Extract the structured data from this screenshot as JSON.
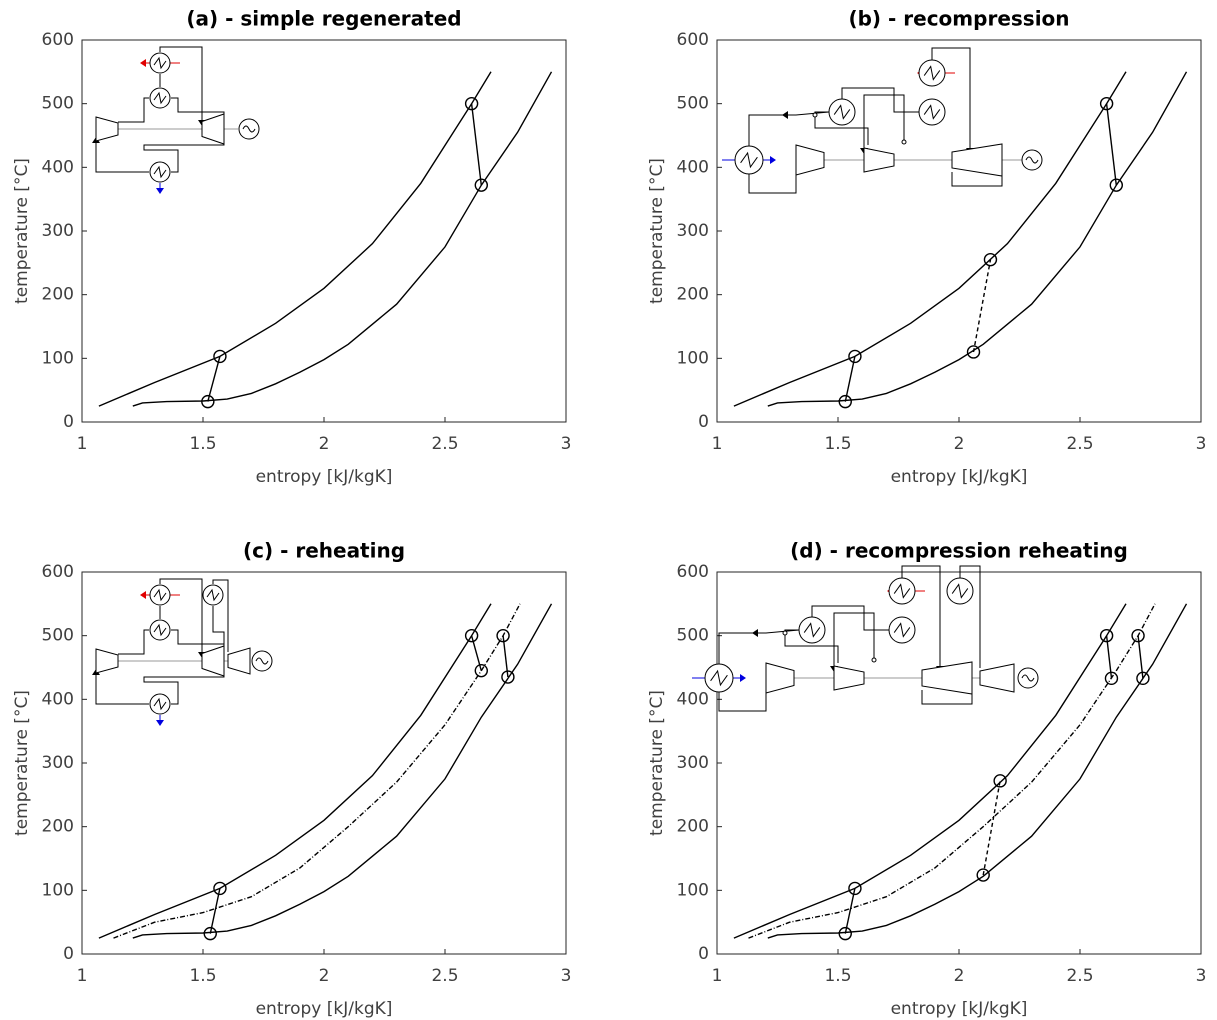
{
  "chart_data": [
    {
      "type": "line",
      "title": "(a) - simple regenerated",
      "xlabel": "entropy [kJ/kgK]",
      "ylabel": "temperature [°C]",
      "xlim": [
        1,
        3
      ],
      "ylim": [
        0,
        600
      ],
      "xticks": [
        1,
        1.5,
        2,
        2.5,
        3
      ],
      "yticks": [
        0,
        100,
        200,
        300,
        400,
        500,
        600
      ],
      "series": [
        {
          "color": "#000000",
          "style": "solid",
          "x": [
            1.07,
            1.3,
            1.57,
            1.8,
            2.0,
            2.2,
            2.4,
            2.61,
            2.69
          ],
          "values": [
            25,
            62,
            103,
            155,
            210,
            280,
            375,
            500,
            550
          ]
        },
        {
          "color": "#000000",
          "style": "solid",
          "x": [
            1.21,
            1.25,
            1.35,
            1.5,
            1.6,
            1.7,
            1.8,
            1.9,
            2.0,
            2.1,
            2.3,
            2.5,
            2.65,
            2.8,
            2.94
          ],
          "values": [
            25,
            30,
            32,
            33,
            36,
            45,
            60,
            78,
            98,
            122,
            185,
            275,
            372,
            455,
            550
          ]
        },
        {
          "color": "#000000",
          "style": "solid",
          "marker": "circle",
          "x": [
            1.52,
            1.57
          ],
          "values": [
            32,
            103
          ]
        },
        {
          "color": "#000000",
          "style": "solid",
          "marker": "circle",
          "x": [
            2.61,
            2.65
          ],
          "values": [
            500,
            372
          ]
        }
      ]
    },
    {
      "type": "line",
      "title": "(b) - recompression",
      "xlabel": "entropy [kJ/kgK]",
      "ylabel": "temperature [°C]",
      "xlim": [
        1,
        3
      ],
      "ylim": [
        0,
        600
      ],
      "xticks": [
        1,
        1.5,
        2,
        2.5,
        3
      ],
      "yticks": [
        0,
        100,
        200,
        300,
        400,
        500,
        600
      ],
      "series": [
        {
          "color": "#000000",
          "style": "solid",
          "x": [
            1.07,
            1.3,
            1.57,
            1.8,
            2.0,
            2.2,
            2.4,
            2.61,
            2.69
          ],
          "values": [
            25,
            62,
            103,
            155,
            210,
            280,
            375,
            500,
            550
          ]
        },
        {
          "color": "#000000",
          "style": "solid",
          "x": [
            1.21,
            1.25,
            1.35,
            1.5,
            1.6,
            1.7,
            1.8,
            1.9,
            2.0,
            2.1,
            2.3,
            2.5,
            2.65,
            2.8,
            2.94
          ],
          "values": [
            25,
            30,
            32,
            33,
            36,
            45,
            60,
            78,
            98,
            122,
            185,
            275,
            372,
            455,
            550
          ]
        },
        {
          "color": "#000000",
          "style": "solid",
          "marker": "circle",
          "x": [
            1.53,
            1.57
          ],
          "values": [
            32,
            103
          ]
        },
        {
          "color": "#000000",
          "style": "dashed",
          "marker": "circle",
          "x": [
            2.06,
            2.13
          ],
          "values": [
            110,
            255
          ]
        },
        {
          "color": "#000000",
          "style": "solid",
          "marker": "circle",
          "x": [
            2.61,
            2.65
          ],
          "values": [
            500,
            372
          ]
        }
      ]
    },
    {
      "type": "line",
      "title": "(c) - reheating",
      "xlabel": "entropy [kJ/kgK]",
      "ylabel": "temperature [°C]",
      "xlim": [
        1,
        3
      ],
      "ylim": [
        0,
        600
      ],
      "xticks": [
        1,
        1.5,
        2,
        2.5,
        3
      ],
      "yticks": [
        0,
        100,
        200,
        300,
        400,
        500,
        600
      ],
      "series": [
        {
          "color": "#000000",
          "style": "solid",
          "x": [
            1.07,
            1.3,
            1.57,
            1.8,
            2.0,
            2.2,
            2.4,
            2.61,
            2.69
          ],
          "values": [
            25,
            62,
            103,
            155,
            210,
            280,
            375,
            500,
            550
          ]
        },
        {
          "color": "#000000",
          "style": "solid",
          "x": [
            1.21,
            1.25,
            1.35,
            1.5,
            1.6,
            1.7,
            1.8,
            1.9,
            2.0,
            2.1,
            2.3,
            2.5,
            2.65,
            2.8,
            2.94
          ],
          "values": [
            25,
            30,
            32,
            33,
            36,
            45,
            60,
            78,
            98,
            122,
            185,
            275,
            372,
            455,
            550
          ]
        },
        {
          "color": "#000000",
          "style": "dashdot",
          "x": [
            1.13,
            1.3,
            1.5,
            1.7,
            1.9,
            2.1,
            2.3,
            2.5,
            2.65,
            2.74,
            2.81
          ],
          "values": [
            25,
            50,
            65,
            90,
            135,
            200,
            270,
            360,
            445,
            500,
            550
          ]
        },
        {
          "color": "#000000",
          "style": "solid",
          "marker": "circle",
          "x": [
            1.53,
            1.57
          ],
          "values": [
            32,
            103
          ]
        },
        {
          "color": "#000000",
          "style": "solid",
          "marker": "circle",
          "x": [
            2.61,
            2.65
          ],
          "values": [
            500,
            445
          ]
        },
        {
          "color": "#000000",
          "style": "solid",
          "marker": "circle",
          "x": [
            2.74,
            2.76
          ],
          "values": [
            500,
            435
          ]
        }
      ]
    },
    {
      "type": "line",
      "title": "(d) - recompression reheating",
      "xlabel": "entropy [kJ/kgK]",
      "ylabel": "temperature [°C]",
      "xlim": [
        1,
        3
      ],
      "ylim": [
        0,
        600
      ],
      "xticks": [
        1,
        1.5,
        2,
        2.5,
        3
      ],
      "yticks": [
        0,
        100,
        200,
        300,
        400,
        500,
        600
      ],
      "series": [
        {
          "color": "#000000",
          "style": "solid",
          "x": [
            1.07,
            1.3,
            1.57,
            1.8,
            2.0,
            2.2,
            2.4,
            2.61,
            2.69
          ],
          "values": [
            25,
            62,
            103,
            155,
            210,
            280,
            375,
            500,
            550
          ]
        },
        {
          "color": "#000000",
          "style": "solid",
          "x": [
            1.21,
            1.25,
            1.35,
            1.5,
            1.6,
            1.7,
            1.8,
            1.9,
            2.0,
            2.1,
            2.3,
            2.5,
            2.65,
            2.8,
            2.94
          ],
          "values": [
            25,
            30,
            32,
            33,
            36,
            45,
            60,
            78,
            98,
            122,
            185,
            275,
            372,
            455,
            550
          ]
        },
        {
          "color": "#000000",
          "style": "dashdot",
          "x": [
            1.13,
            1.3,
            1.5,
            1.7,
            1.9,
            2.1,
            2.3,
            2.5,
            2.65,
            2.74,
            2.81
          ],
          "values": [
            25,
            50,
            65,
            90,
            135,
            200,
            270,
            360,
            445,
            500,
            550
          ]
        },
        {
          "color": "#000000",
          "style": "solid",
          "marker": "circle",
          "x": [
            1.53,
            1.57
          ],
          "values": [
            32,
            103
          ]
        },
        {
          "color": "#000000",
          "style": "dashed",
          "marker": "circle",
          "x": [
            2.1,
            2.17
          ],
          "values": [
            124,
            272
          ]
        },
        {
          "color": "#000000",
          "style": "solid",
          "marker": "circle",
          "x": [
            2.61,
            2.63
          ],
          "values": [
            500,
            433
          ]
        },
        {
          "color": "#000000",
          "style": "solid",
          "marker": "circle",
          "x": [
            2.74,
            2.76
          ],
          "values": [
            500,
            433
          ]
        }
      ]
    }
  ]
}
